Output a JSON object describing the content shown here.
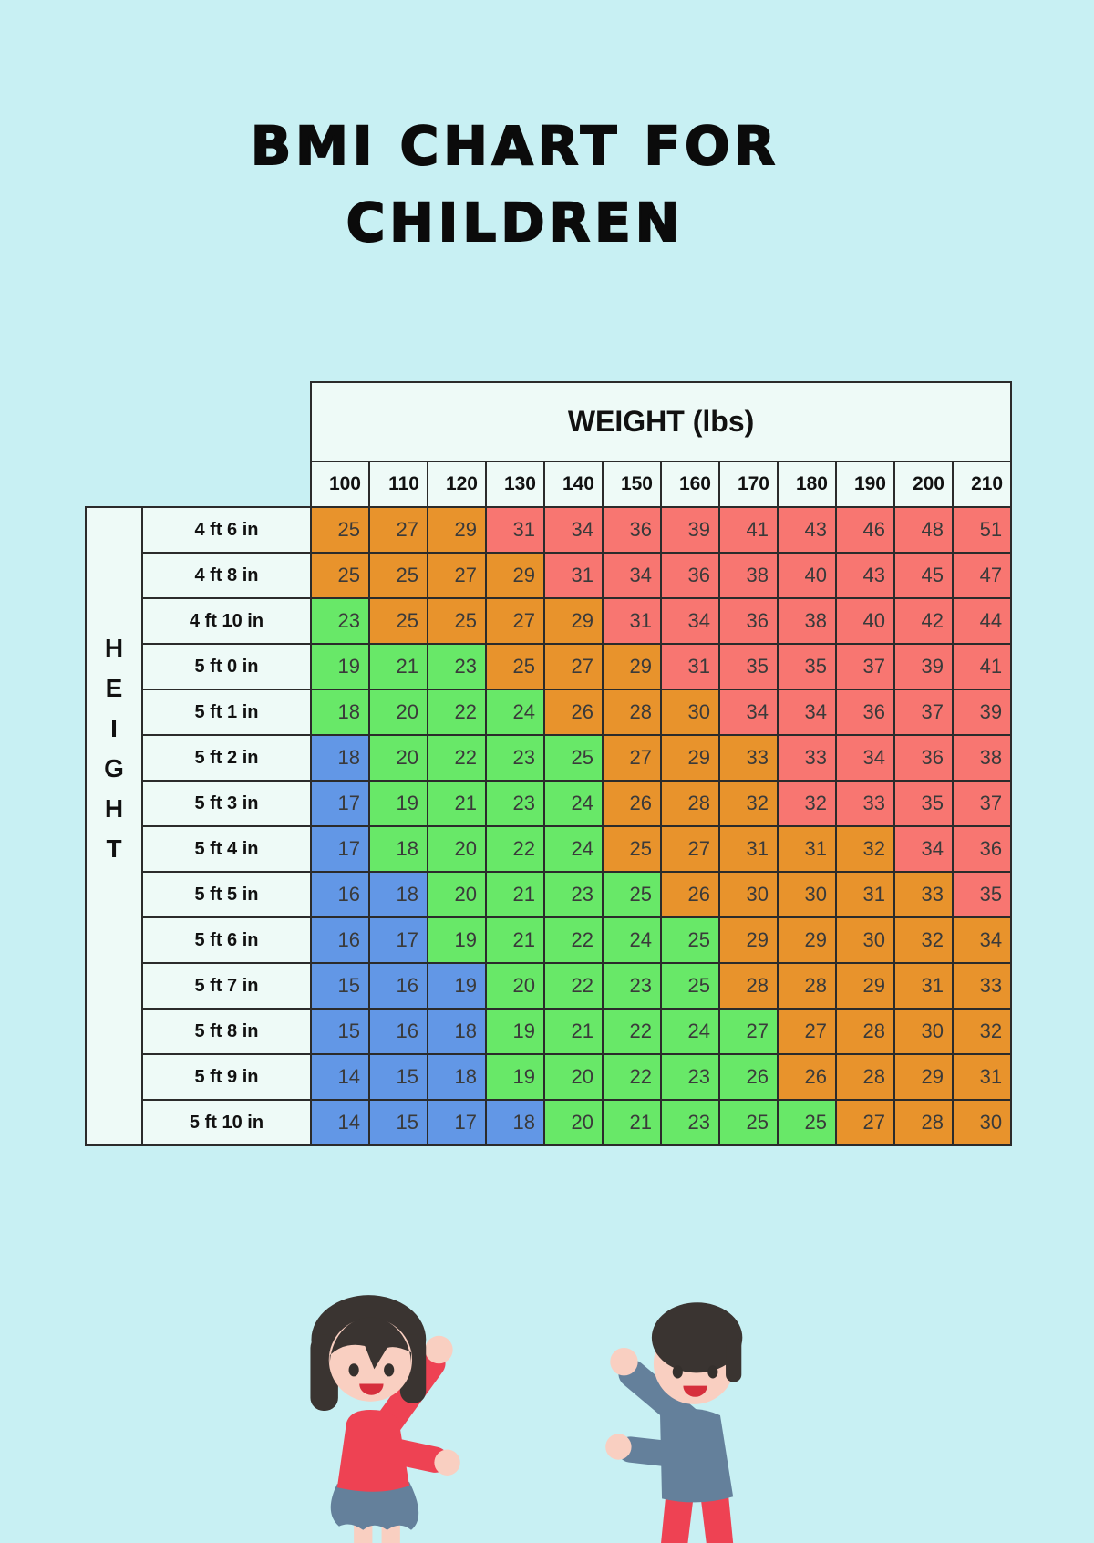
{
  "page": {
    "background_color": "#c8f0f3",
    "title_line1": "BMI CHART FOR",
    "title_line2": "CHILDREN"
  },
  "chart_data": {
    "type": "heatmap",
    "title": "BMI Chart for Children",
    "x_axis_title": "WEIGHT (lbs)",
    "y_axis_title": "HEIGHT",
    "weight_columns_lbs": [
      "100",
      "110",
      "120",
      "130",
      "140",
      "150",
      "160",
      "170",
      "180",
      "190",
      "200",
      "210"
    ],
    "height_rows": [
      "4 ft 6 in",
      "4 ft 8 in",
      "4 ft 10 in",
      "5 ft 0 in",
      "5 ft 1 in",
      "5 ft 2 in",
      "5 ft 3 in",
      "5 ft 4 in",
      "5 ft 5 in",
      "5 ft 6 in",
      "5 ft 7 in",
      "5 ft 8 in",
      "5 ft 9 in",
      "5 ft 10 in"
    ],
    "bmi_values": [
      [
        25,
        27,
        29,
        31,
        34,
        36,
        39,
        41,
        43,
        46,
        48,
        51
      ],
      [
        25,
        25,
        27,
        29,
        31,
        34,
        36,
        38,
        40,
        43,
        45,
        47
      ],
      [
        23,
        25,
        25,
        27,
        29,
        31,
        34,
        36,
        38,
        40,
        42,
        44
      ],
      [
        19,
        21,
        23,
        25,
        27,
        29,
        31,
        35,
        35,
        37,
        39,
        41
      ],
      [
        18,
        20,
        22,
        24,
        26,
        28,
        30,
        34,
        34,
        36,
        37,
        39
      ],
      [
        18,
        20,
        22,
        23,
        25,
        27,
        29,
        33,
        33,
        34,
        36,
        38
      ],
      [
        17,
        19,
        21,
        23,
        24,
        26,
        28,
        32,
        32,
        33,
        35,
        37
      ],
      [
        17,
        18,
        20,
        22,
        24,
        25,
        27,
        31,
        31,
        32,
        34,
        36
      ],
      [
        16,
        18,
        20,
        21,
        23,
        25,
        26,
        30,
        30,
        31,
        33,
        35
      ],
      [
        16,
        17,
        19,
        21,
        22,
        24,
        25,
        29,
        29,
        30,
        32,
        34
      ],
      [
        15,
        16,
        19,
        20,
        22,
        23,
        25,
        28,
        28,
        29,
        31,
        33
      ],
      [
        15,
        16,
        18,
        19,
        21,
        22,
        24,
        27,
        27,
        28,
        30,
        32
      ],
      [
        14,
        15,
        18,
        19,
        20,
        22,
        23,
        26,
        26,
        28,
        29,
        31
      ],
      [
        14,
        15,
        17,
        18,
        20,
        21,
        23,
        25,
        25,
        27,
        28,
        30
      ]
    ],
    "cell_colors": [
      [
        "orange",
        "orange",
        "orange",
        "red",
        "red",
        "red",
        "red",
        "red",
        "red",
        "red",
        "red",
        "red"
      ],
      [
        "orange",
        "orange",
        "orange",
        "orange",
        "red",
        "red",
        "red",
        "red",
        "red",
        "red",
        "red",
        "red"
      ],
      [
        "green",
        "orange",
        "orange",
        "orange",
        "orange",
        "red",
        "red",
        "red",
        "red",
        "red",
        "red",
        "red"
      ],
      [
        "green",
        "green",
        "green",
        "orange",
        "orange",
        "orange",
        "red",
        "red",
        "red",
        "red",
        "red",
        "red"
      ],
      [
        "green",
        "green",
        "green",
        "green",
        "orange",
        "orange",
        "orange",
        "red",
        "red",
        "red",
        "red",
        "red"
      ],
      [
        "blue",
        "green",
        "green",
        "green",
        "green",
        "orange",
        "orange",
        "orange",
        "red",
        "red",
        "red",
        "red"
      ],
      [
        "blue",
        "green",
        "green",
        "green",
        "green",
        "orange",
        "orange",
        "orange",
        "red",
        "red",
        "red",
        "red"
      ],
      [
        "blue",
        "green",
        "green",
        "green",
        "green",
        "orange",
        "orange",
        "orange",
        "orange",
        "orange",
        "red",
        "red"
      ],
      [
        "blue",
        "blue",
        "green",
        "green",
        "green",
        "green",
        "orange",
        "orange",
        "orange",
        "orange",
        "orange",
        "red"
      ],
      [
        "blue",
        "blue",
        "green",
        "green",
        "green",
        "green",
        "green",
        "orange",
        "orange",
        "orange",
        "orange",
        "orange"
      ],
      [
        "blue",
        "blue",
        "blue",
        "green",
        "green",
        "green",
        "green",
        "orange",
        "orange",
        "orange",
        "orange",
        "orange"
      ],
      [
        "blue",
        "blue",
        "blue",
        "green",
        "green",
        "green",
        "green",
        "green",
        "orange",
        "orange",
        "orange",
        "orange"
      ],
      [
        "blue",
        "blue",
        "blue",
        "green",
        "green",
        "green",
        "green",
        "green",
        "orange",
        "orange",
        "orange",
        "orange"
      ],
      [
        "blue",
        "blue",
        "blue",
        "blue",
        "green",
        "green",
        "green",
        "green",
        "green",
        "orange",
        "orange",
        "orange"
      ]
    ],
    "color_legend": {
      "blue": "#6297e6",
      "green": "#68e868",
      "orange": "#e8932c",
      "red": "#f87671"
    },
    "grid_line_color": "#2b2b2b",
    "header_bg": "#eefaf7"
  },
  "illustrations": {
    "left": "girl-waving",
    "right": "boy-waving"
  }
}
